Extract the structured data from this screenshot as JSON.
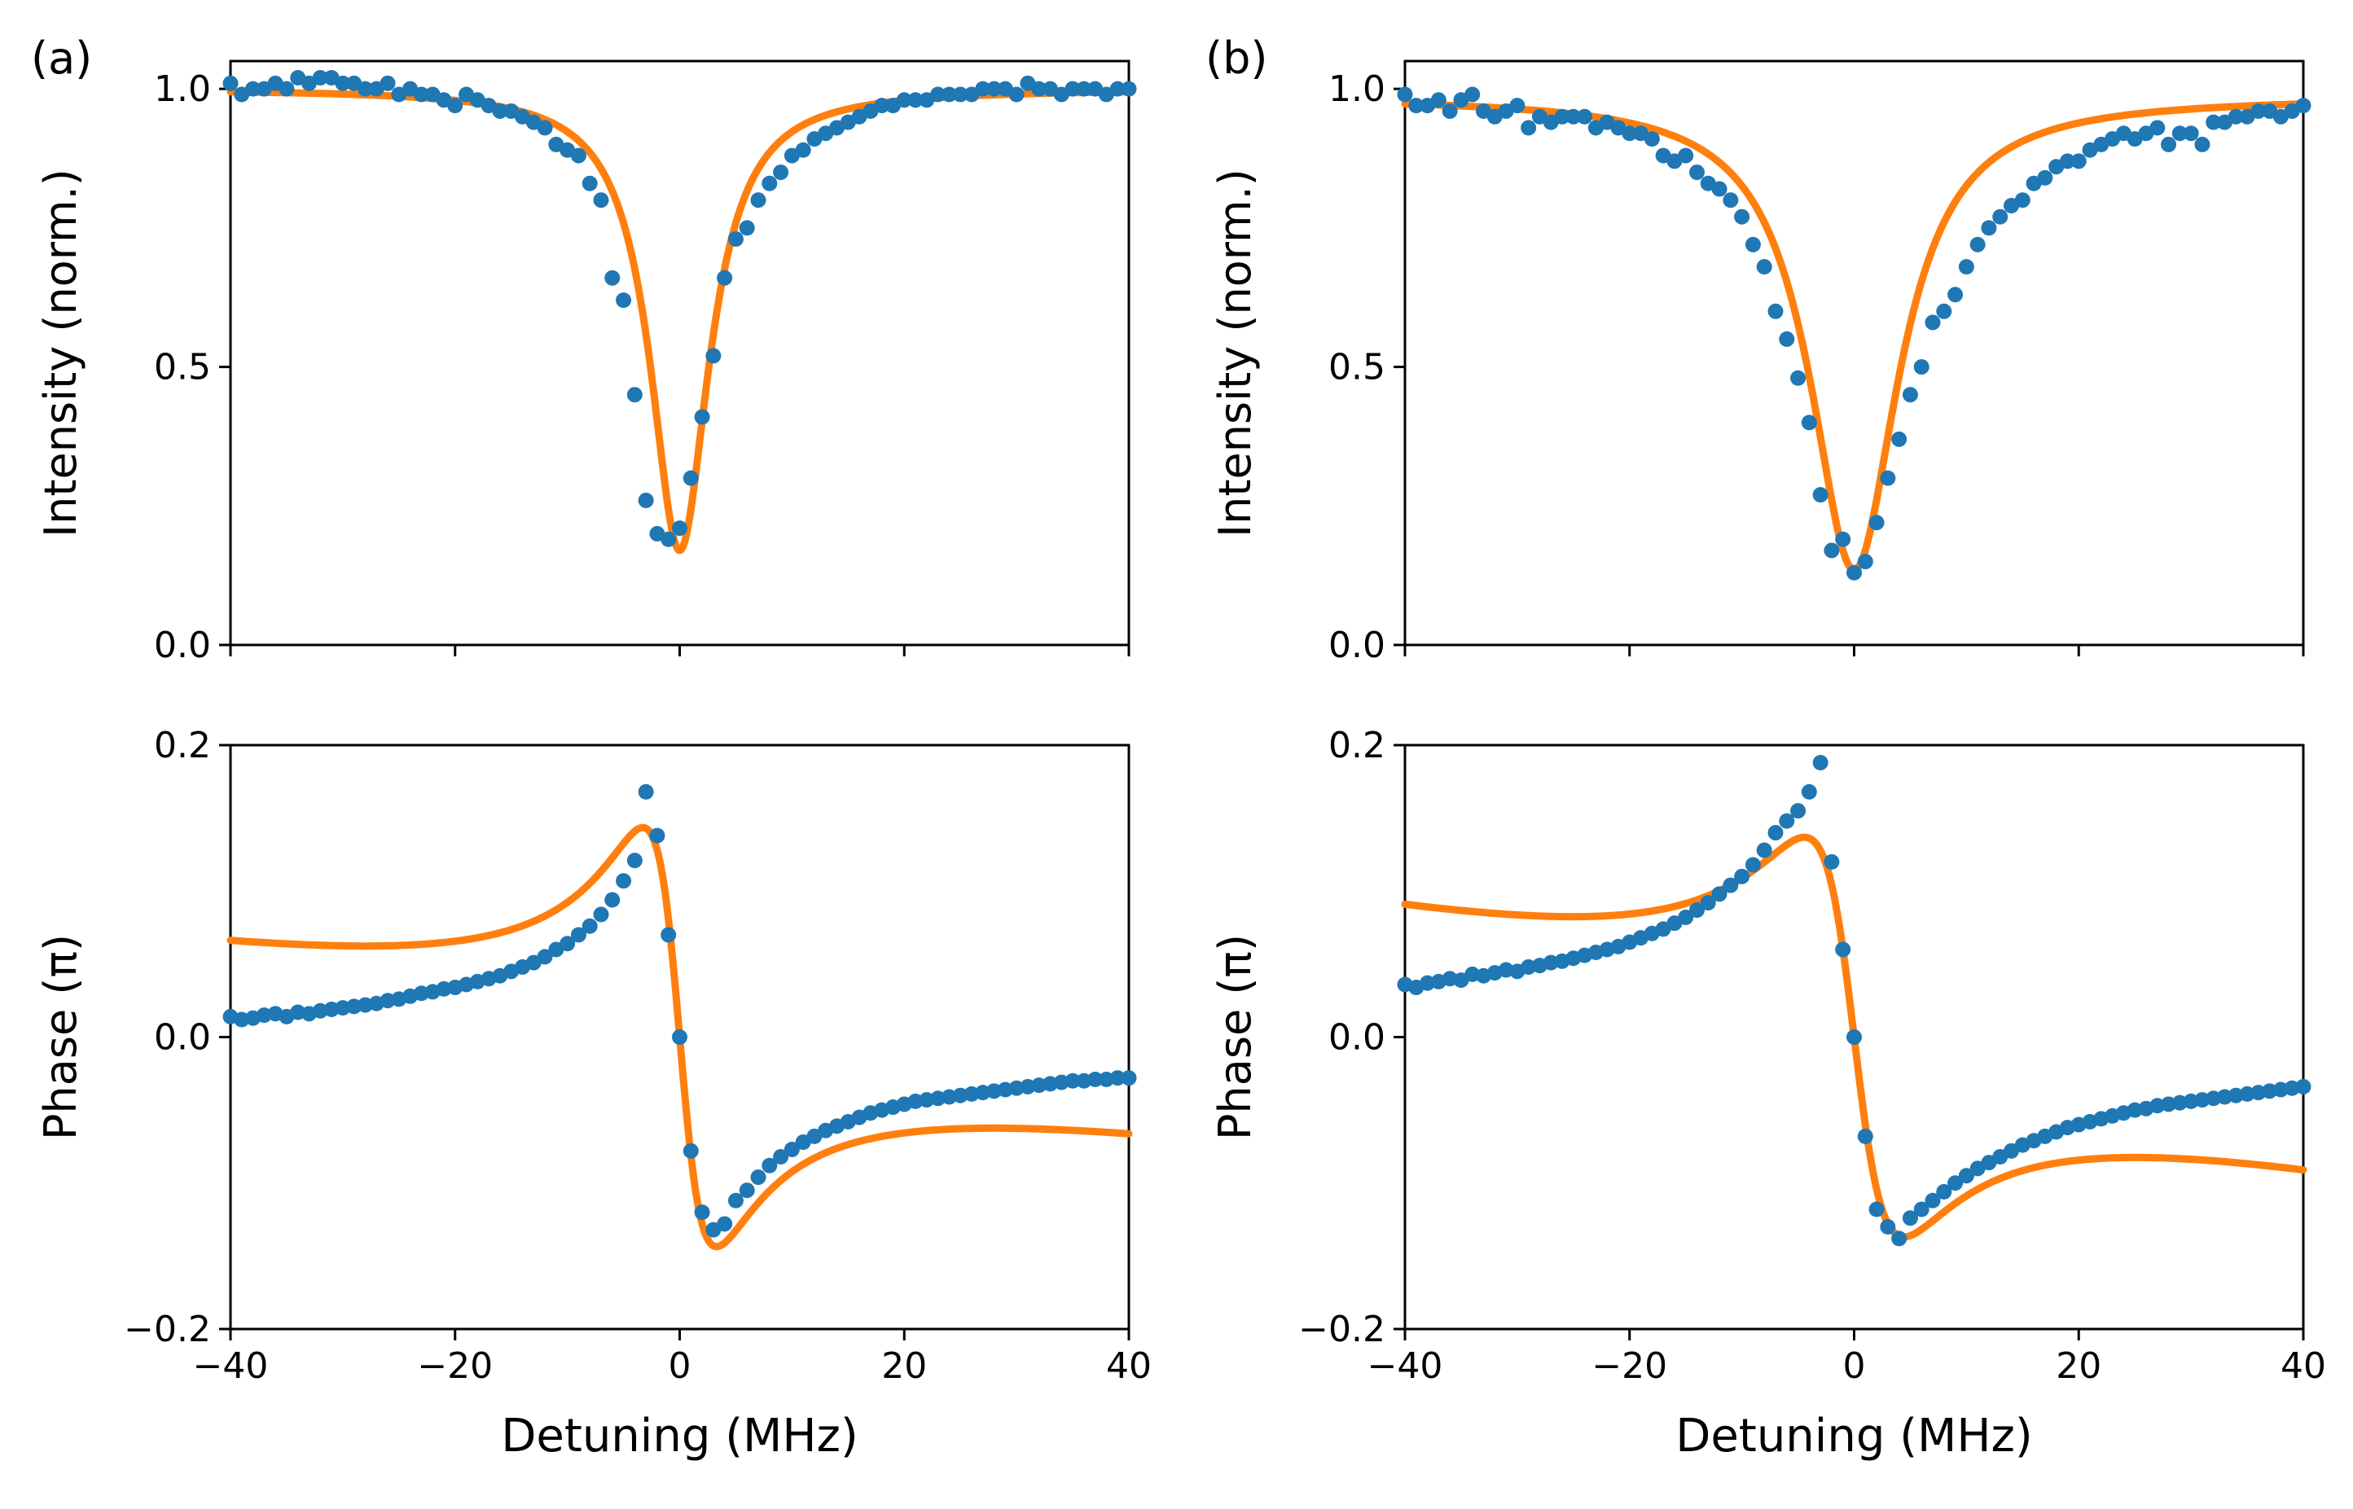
{
  "colors": {
    "data": "#1f77b4",
    "fit": "#ff7f0e",
    "axes": "#000000"
  },
  "chart_data": [
    {
      "type": "scatter+line",
      "panel_label": "(a)",
      "quantity": "intensity",
      "xlabel": "",
      "ylabel": "Intensity (norm.)",
      "xlim": [
        -40,
        40
      ],
      "ylim": [
        0.0,
        1.05
      ],
      "xticks": [
        -40,
        -20,
        0,
        20,
        40
      ],
      "xtick_labels": [
        "",
        "",
        "",
        "",
        ""
      ],
      "yticks": [
        0.0,
        0.5,
        1.0
      ],
      "ytick_labels": [
        "0.0",
        "0.5",
        "1.0"
      ],
      "grid": false,
      "fit": {
        "kind": "lorentzian_dip",
        "center": 0.0,
        "depth": 0.83,
        "half_width": 3.2,
        "baseline": 1.0
      },
      "data_points": {
        "x": [
          -40,
          -39,
          -38,
          -37,
          -36,
          -35,
          -34,
          -33,
          -32,
          -31,
          -30,
          -29,
          -28,
          -27,
          -26,
          -25,
          -24,
          -23,
          -22,
          -21,
          -20,
          -19,
          -18,
          -17,
          -16,
          -15,
          -14,
          -13,
          -12,
          -11,
          -10,
          -9,
          -8,
          -7,
          -6,
          -5,
          -4,
          -3,
          -2,
          -1,
          0,
          1,
          2,
          3,
          4,
          5,
          6,
          7,
          8,
          9,
          10,
          11,
          12,
          13,
          14,
          15,
          16,
          17,
          18,
          19,
          20,
          21,
          22,
          23,
          24,
          25,
          26,
          27,
          28,
          29,
          30,
          31,
          32,
          33,
          34,
          35,
          36,
          37,
          38,
          39,
          40
        ],
        "y": [
          1.01,
          0.99,
          1.0,
          1.0,
          1.01,
          1.0,
          1.02,
          1.01,
          1.02,
          1.02,
          1.01,
          1.01,
          1.0,
          1.0,
          1.01,
          0.99,
          1.0,
          0.99,
          0.99,
          0.98,
          0.97,
          0.99,
          0.98,
          0.97,
          0.96,
          0.96,
          0.95,
          0.94,
          0.93,
          0.9,
          0.89,
          0.88,
          0.83,
          0.8,
          0.66,
          0.62,
          0.45,
          0.26,
          0.2,
          0.19,
          0.21,
          0.3,
          0.41,
          0.52,
          0.66,
          0.73,
          0.75,
          0.8,
          0.83,
          0.85,
          0.88,
          0.89,
          0.91,
          0.92,
          0.93,
          0.94,
          0.95,
          0.96,
          0.97,
          0.97,
          0.98,
          0.98,
          0.98,
          0.99,
          0.99,
          0.99,
          0.99,
          1.0,
          1.0,
          1.0,
          0.99,
          1.01,
          1.0,
          1.0,
          0.99,
          1.0,
          1.0,
          1.0,
          0.99,
          1.0,
          1.0
        ]
      }
    },
    {
      "type": "scatter+line",
      "panel_label": "",
      "quantity": "phase",
      "xlabel": "Detuning (MHz)",
      "ylabel": "Phase (π)",
      "xlim": [
        -40,
        40
      ],
      "ylim": [
        -0.2,
        0.2
      ],
      "xticks": [
        -40,
        -20,
        0,
        20,
        40
      ],
      "xtick_labels": [
        "−40",
        "−20",
        "0",
        "20",
        "40"
      ],
      "yticks": [
        -0.2,
        0.0,
        0.2
      ],
      "ytick_labels": [
        "−0.2",
        "0.0",
        "0.2"
      ],
      "grid": false,
      "fit": {
        "kind": "dispersive",
        "center": 0.0,
        "half_width": 3.2,
        "amplitude": 0.28,
        "slope": -0.0011
      },
      "data_points": {
        "x": [
          -40,
          -39,
          -38,
          -37,
          -36,
          -35,
          -34,
          -33,
          -32,
          -31,
          -30,
          -29,
          -28,
          -27,
          -26,
          -25,
          -24,
          -23,
          -22,
          -21,
          -20,
          -19,
          -18,
          -17,
          -16,
          -15,
          -14,
          -13,
          -12,
          -11,
          -10,
          -9,
          -8,
          -7,
          -6,
          -5,
          -4,
          -3,
          -2,
          -1,
          0,
          1,
          2,
          3,
          4,
          5,
          6,
          7,
          8,
          9,
          10,
          11,
          12,
          13,
          14,
          15,
          16,
          17,
          18,
          19,
          20,
          21,
          22,
          23,
          24,
          25,
          26,
          27,
          28,
          29,
          30,
          31,
          32,
          33,
          34,
          35,
          36,
          37,
          38,
          39,
          40
        ],
        "y": [
          0.014,
          0.012,
          0.013,
          0.015,
          0.016,
          0.014,
          0.017,
          0.016,
          0.018,
          0.019,
          0.02,
          0.021,
          0.022,
          0.023,
          0.025,
          0.026,
          0.028,
          0.03,
          0.031,
          0.033,
          0.034,
          0.036,
          0.038,
          0.04,
          0.042,
          0.045,
          0.048,
          0.051,
          0.055,
          0.06,
          0.064,
          0.07,
          0.076,
          0.084,
          0.094,
          0.107,
          0.121,
          0.168,
          0.138,
          0.07,
          0.0,
          -0.078,
          -0.12,
          -0.132,
          -0.128,
          -0.112,
          -0.105,
          -0.096,
          -0.088,
          -0.082,
          -0.077,
          -0.072,
          -0.068,
          -0.064,
          -0.061,
          -0.058,
          -0.055,
          -0.052,
          -0.05,
          -0.048,
          -0.046,
          -0.044,
          -0.043,
          -0.042,
          -0.041,
          -0.04,
          -0.039,
          -0.038,
          -0.037,
          -0.036,
          -0.035,
          -0.034,
          -0.033,
          -0.032,
          -0.031,
          -0.03,
          -0.03,
          -0.029,
          -0.029,
          -0.028,
          -0.028
        ]
      }
    },
    {
      "type": "scatter+line",
      "panel_label": "(b)",
      "quantity": "intensity",
      "xlabel": "",
      "ylabel": "Intensity (norm.)",
      "xlim": [
        -40,
        40
      ],
      "ylim": [
        0.0,
        1.05
      ],
      "xticks": [
        -40,
        -20,
        0,
        20,
        40
      ],
      "xtick_labels": [
        "",
        "",
        "",
        "",
        ""
      ],
      "yticks": [
        0.0,
        0.5,
        1.0
      ],
      "ytick_labels": [
        "0.0",
        "0.5",
        "1.0"
      ],
      "grid": false,
      "fit": {
        "kind": "lorentzian_dip",
        "center": 0.0,
        "depth": 0.85,
        "half_width": 4.8,
        "baseline": 0.985
      },
      "data_points": {
        "x": [
          -40,
          -39,
          -38,
          -37,
          -36,
          -35,
          -34,
          -33,
          -32,
          -31,
          -30,
          -29,
          -28,
          -27,
          -26,
          -25,
          -24,
          -23,
          -22,
          -21,
          -20,
          -19,
          -18,
          -17,
          -16,
          -15,
          -14,
          -13,
          -12,
          -11,
          -10,
          -9,
          -8,
          -7,
          -6,
          -5,
          -4,
          -3,
          -2,
          -1,
          0,
          1,
          2,
          3,
          4,
          5,
          6,
          7,
          8,
          9,
          10,
          11,
          12,
          13,
          14,
          15,
          16,
          17,
          18,
          19,
          20,
          21,
          22,
          23,
          24,
          25,
          26,
          27,
          28,
          29,
          30,
          31,
          32,
          33,
          34,
          35,
          36,
          37,
          38,
          39,
          40
        ],
        "y": [
          0.99,
          0.97,
          0.97,
          0.98,
          0.96,
          0.98,
          0.99,
          0.96,
          0.95,
          0.96,
          0.97,
          0.93,
          0.95,
          0.94,
          0.95,
          0.95,
          0.95,
          0.93,
          0.94,
          0.93,
          0.92,
          0.92,
          0.91,
          0.88,
          0.87,
          0.88,
          0.85,
          0.83,
          0.82,
          0.8,
          0.77,
          0.72,
          0.68,
          0.6,
          0.55,
          0.48,
          0.4,
          0.27,
          0.17,
          0.19,
          0.13,
          0.15,
          0.22,
          0.3,
          0.37,
          0.45,
          0.5,
          0.58,
          0.6,
          0.63,
          0.68,
          0.72,
          0.75,
          0.77,
          0.79,
          0.8,
          0.83,
          0.84,
          0.86,
          0.87,
          0.87,
          0.89,
          0.9,
          0.91,
          0.92,
          0.91,
          0.92,
          0.93,
          0.9,
          0.92,
          0.92,
          0.9,
          0.94,
          0.94,
          0.95,
          0.95,
          0.96,
          0.96,
          0.95,
          0.96,
          0.97
        ]
      }
    },
    {
      "type": "scatter+line",
      "panel_label": "",
      "quantity": "phase",
      "xlabel": "Detuning (MHz)",
      "ylabel": "Phase (π)",
      "xlim": [
        -40,
        40
      ],
      "ylim": [
        -0.2,
        0.2
      ],
      "xticks": [
        -40,
        -20,
        0,
        20,
        40
      ],
      "xtick_labels": [
        "−40",
        "−20",
        "0",
        "20",
        "40"
      ],
      "yticks": [
        -0.2,
        0.0,
        0.2
      ],
      "ytick_labels": [
        "−0.2",
        "0.0",
        "0.2"
      ],
      "grid": false,
      "fit": {
        "kind": "dispersive",
        "center": 0.0,
        "half_width": 4.2,
        "amplitude": 0.26,
        "slope": -0.0016
      },
      "data_points": {
        "x": [
          -40,
          -39,
          -38,
          -37,
          -36,
          -35,
          -34,
          -33,
          -32,
          -31,
          -30,
          -29,
          -28,
          -27,
          -26,
          -25,
          -24,
          -23,
          -22,
          -21,
          -20,
          -19,
          -18,
          -17,
          -16,
          -15,
          -14,
          -13,
          -12,
          -11,
          -10,
          -9,
          -8,
          -7,
          -6,
          -5,
          -4,
          -3,
          -2,
          -1,
          0,
          1,
          2,
          3,
          4,
          5,
          6,
          7,
          8,
          9,
          10,
          11,
          12,
          13,
          14,
          15,
          16,
          17,
          18,
          19,
          20,
          21,
          22,
          23,
          24,
          25,
          26,
          27,
          28,
          29,
          30,
          31,
          32,
          33,
          34,
          35,
          36,
          37,
          38,
          39,
          40
        ],
        "y": [
          0.036,
          0.034,
          0.037,
          0.038,
          0.04,
          0.039,
          0.043,
          0.042,
          0.044,
          0.046,
          0.045,
          0.048,
          0.049,
          0.051,
          0.052,
          0.054,
          0.056,
          0.058,
          0.06,
          0.062,
          0.065,
          0.068,
          0.071,
          0.074,
          0.078,
          0.082,
          0.087,
          0.092,
          0.098,
          0.104,
          0.11,
          0.118,
          0.128,
          0.14,
          0.148,
          0.155,
          0.168,
          0.188,
          0.12,
          0.06,
          0.0,
          -0.068,
          -0.118,
          -0.13,
          -0.138,
          -0.124,
          -0.118,
          -0.112,
          -0.106,
          -0.1,
          -0.095,
          -0.09,
          -0.086,
          -0.082,
          -0.078,
          -0.074,
          -0.071,
          -0.068,
          -0.065,
          -0.062,
          -0.06,
          -0.058,
          -0.056,
          -0.054,
          -0.052,
          -0.05,
          -0.049,
          -0.047,
          -0.046,
          -0.045,
          -0.044,
          -0.043,
          -0.042,
          -0.041,
          -0.04,
          -0.039,
          -0.038,
          -0.037,
          -0.036,
          -0.035,
          -0.034
        ]
      }
    }
  ]
}
